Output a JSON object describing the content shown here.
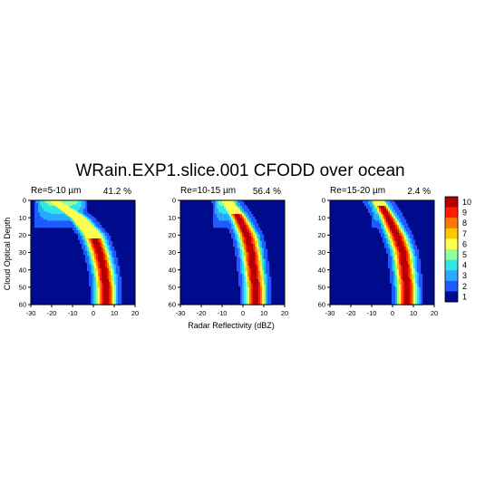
{
  "title": "WRain.EXP1.slice.001 CFODD over ocean",
  "chart_data": {
    "type": "heatmap",
    "title": "WRain.EXP1.slice.001 CFODD over ocean",
    "xlabel": "Radar Reflectivity (dBZ)",
    "ylabel": "Cloud Optical Depth",
    "xlim": [
      -30,
      20
    ],
    "ylim": [
      60,
      0
    ],
    "xticks": [
      "-30",
      "-20",
      "-10",
      "0",
      "10",
      "20"
    ],
    "yticks": [
      "0",
      "10",
      "20",
      "30",
      "40",
      "50",
      "60"
    ],
    "grid": false,
    "colorbar": {
      "levels": [
        "10",
        "9",
        "8",
        "7",
        "6",
        "5",
        "4",
        "3",
        "2",
        "1"
      ],
      "colors": [
        "#b40000",
        "#ff1a00",
        "#ff7800",
        "#ffc800",
        "#ffff50",
        "#90ffa0",
        "#30e6e6",
        "#28aaff",
        "#1e5aff",
        "#000a8c"
      ]
    },
    "panels": [
      {
        "label": "Re=5-10 µm",
        "percent": "41.2 %",
        "ridge": [
          {
            "tau": 0,
            "dbz": -19
          },
          {
            "tau": 10,
            "dbz": -7
          },
          {
            "tau": 20,
            "dbz": 0
          },
          {
            "tau": 30,
            "dbz": 3
          },
          {
            "tau": 40,
            "dbz": 5
          },
          {
            "tau": 50,
            "dbz": 6
          },
          {
            "tau": 60,
            "dbz": 6
          }
        ],
        "core_tau_start": 22,
        "top_plume_extent": [
          -28,
          -3
        ]
      },
      {
        "label": "Re=10-15 µm",
        "percent": "56.4 %",
        "ridge": [
          {
            "tau": 0,
            "dbz": -8
          },
          {
            "tau": 10,
            "dbz": -2
          },
          {
            "tau": 20,
            "dbz": 2
          },
          {
            "tau": 30,
            "dbz": 4
          },
          {
            "tau": 40,
            "dbz": 5
          },
          {
            "tau": 50,
            "dbz": 6
          },
          {
            "tau": 60,
            "dbz": 6
          }
        ],
        "core_tau_start": 8,
        "top_plume_extent": [
          -14,
          -2
        ]
      },
      {
        "label": "Re=15-20 µm",
        "percent": "2.4 %",
        "ridge": [
          {
            "tau": 0,
            "dbz": -7
          },
          {
            "tau": 10,
            "dbz": -2
          },
          {
            "tau": 20,
            "dbz": 2
          },
          {
            "tau": 30,
            "dbz": 5
          },
          {
            "tau": 40,
            "dbz": 6
          },
          {
            "tau": 50,
            "dbz": 7
          },
          {
            "tau": 60,
            "dbz": 7
          }
        ],
        "core_tau_start": 3,
        "top_plume_extent": [
          -10,
          -4
        ]
      }
    ]
  }
}
